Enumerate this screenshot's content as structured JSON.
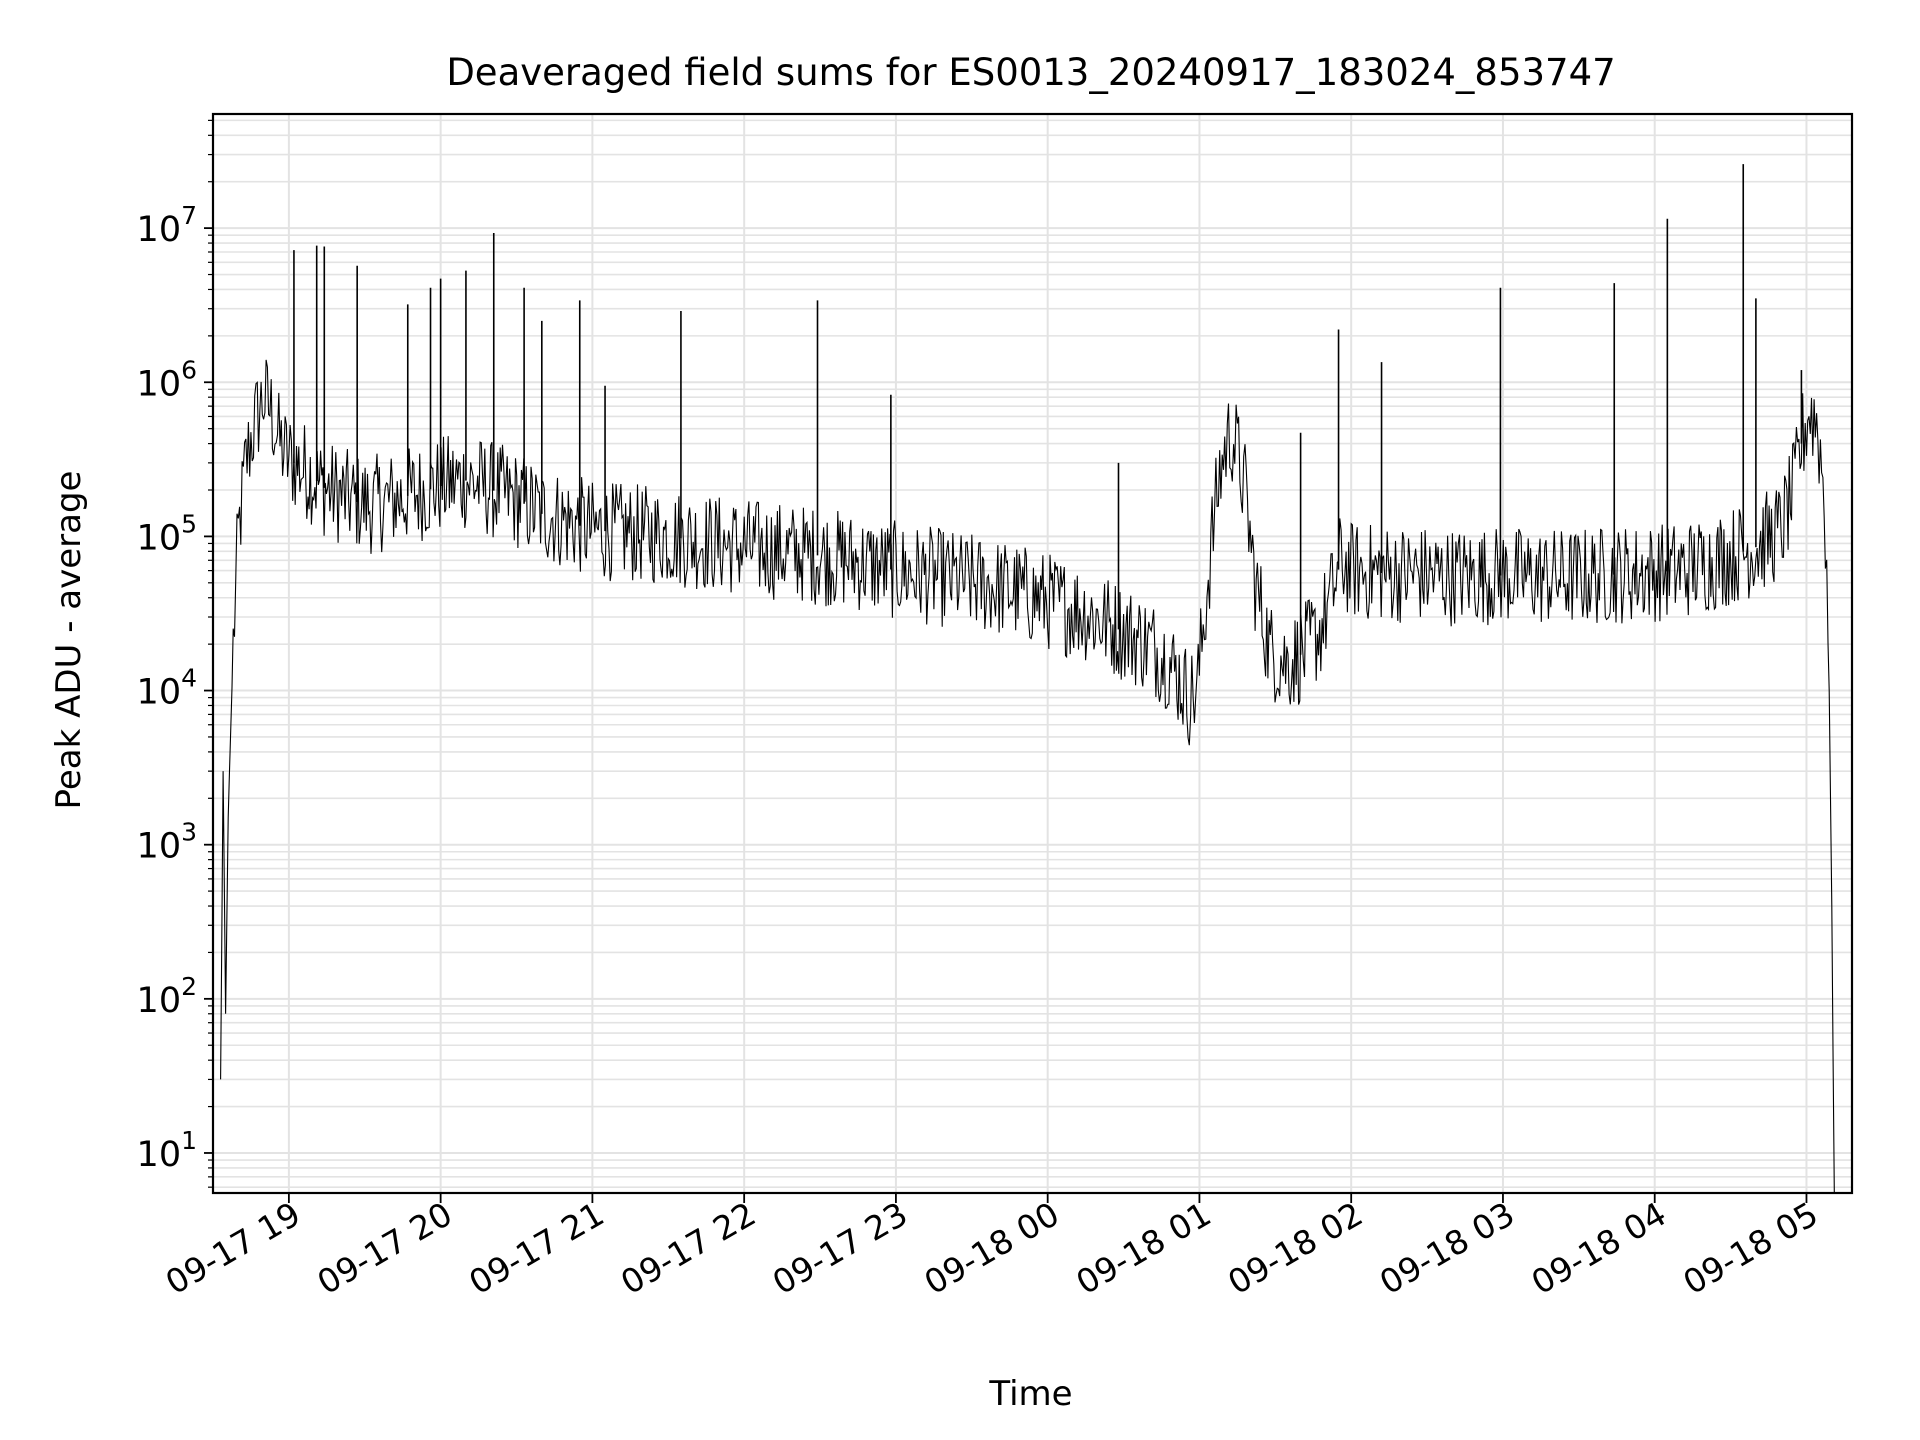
{
  "chart_data": {
    "type": "line",
    "title": "Deaveraged field sums for ES0013_20240917_183024_853747",
    "xlabel": "Time",
    "ylabel": "Peak ADU - average",
    "yscale": "log",
    "ylim": [
      5.5,
      55000000
    ],
    "xlim": [
      "2024-09-17 18:30",
      "2024-09-18 05:18"
    ],
    "grid": true,
    "line_color": "#000000",
    "grid_color": "#e3e3e3",
    "x_ticks": [
      {
        "t": "2024-09-17 19:00",
        "label": "09-17 19"
      },
      {
        "t": "2024-09-17 20:00",
        "label": "09-17 20"
      },
      {
        "t": "2024-09-17 21:00",
        "label": "09-17 21"
      },
      {
        "t": "2024-09-17 22:00",
        "label": "09-17 22"
      },
      {
        "t": "2024-09-17 23:00",
        "label": "09-17 23"
      },
      {
        "t": "2024-09-18 00:00",
        "label": "09-18 00"
      },
      {
        "t": "2024-09-18 01:00",
        "label": "09-18 01"
      },
      {
        "t": "2024-09-18 02:00",
        "label": "09-18 02"
      },
      {
        "t": "2024-09-18 03:00",
        "label": "09-18 03"
      },
      {
        "t": "2024-09-18 04:00",
        "label": "09-18 04"
      },
      {
        "t": "2024-09-18 05:00",
        "label": "09-18 05"
      }
    ],
    "y_ticks": [
      {
        "v": 10,
        "base": "10",
        "exp": "1"
      },
      {
        "v": 100,
        "base": "10",
        "exp": "2"
      },
      {
        "v": 1000,
        "base": "10",
        "exp": "3"
      },
      {
        "v": 10000,
        "base": "10",
        "exp": "4"
      },
      {
        "v": 100000,
        "base": "10",
        "exp": "5"
      },
      {
        "v": 1000000,
        "base": "10",
        "exp": "6"
      },
      {
        "v": 10000000,
        "base": "10",
        "exp": "7"
      }
    ],
    "series": [
      {
        "x": [
          "2024-09-17 18:33",
          "2024-09-17 18:34",
          "2024-09-17 18:35",
          "2024-09-17 18:36",
          "2024-09-17 18:38",
          "2024-09-17 18:40",
          "2024-09-17 18:43",
          "2024-09-17 18:46",
          "2024-09-17 18:50",
          "2024-09-17 18:53",
          "2024-09-17 18:56",
          "2024-09-17 18:59",
          "2024-09-17 19:03",
          "2024-09-17 19:08",
          "2024-09-17 19:13",
          "2024-09-17 19:19",
          "2024-09-17 19:25",
          "2024-09-17 19:32",
          "2024-09-17 19:40",
          "2024-09-17 19:48",
          "2024-09-17 19:55",
          "2024-09-17 20:03",
          "2024-09-17 20:10",
          "2024-09-17 20:17",
          "2024-09-17 20:24",
          "2024-09-17 20:31",
          "2024-09-17 20:40",
          "2024-09-17 20:50",
          "2024-09-17 21:00",
          "2024-09-17 21:15",
          "2024-09-17 21:30",
          "2024-09-17 21:45",
          "2024-09-17 22:00",
          "2024-09-17 22:15",
          "2024-09-17 22:30",
          "2024-09-17 22:45",
          "2024-09-17 23:00",
          "2024-09-17 23:15",
          "2024-09-17 23:30",
          "2024-09-17 23:45",
          "2024-09-18 00:00",
          "2024-09-18 00:15",
          "2024-09-18 00:30",
          "2024-09-18 00:40",
          "2024-09-18 00:47",
          "2024-09-18 00:52",
          "2024-09-18 00:56",
          "2024-09-18 00:59",
          "2024-09-18 01:02",
          "2024-09-18 01:05",
          "2024-09-18 01:08",
          "2024-09-18 01:11",
          "2024-09-18 01:13",
          "2024-09-18 01:15",
          "2024-09-18 01:18",
          "2024-09-18 01:22",
          "2024-09-18 01:28",
          "2024-09-18 01:35",
          "2024-09-18 01:42",
          "2024-09-18 01:48",
          "2024-09-18 01:52",
          "2024-09-18 01:56",
          "2024-09-18 02:00",
          "2024-09-18 02:10",
          "2024-09-18 02:25",
          "2024-09-18 02:40",
          "2024-09-18 02:55",
          "2024-09-18 03:10",
          "2024-09-18 03:25",
          "2024-09-18 03:40",
          "2024-09-18 03:55",
          "2024-09-18 04:10",
          "2024-09-18 04:25",
          "2024-09-18 04:40",
          "2024-09-18 04:50",
          "2024-09-18 04:55",
          "2024-09-18 04:58",
          "2024-09-18 05:01",
          "2024-09-18 05:04",
          "2024-09-18 05:06",
          "2024-09-18 05:08",
          "2024-09-18 05:09",
          "2024-09-18 05:10",
          "2024-09-18 05:11"
        ],
        "y": [
          30,
          3000,
          80,
          1500,
          20000,
          100000,
          300000,
          500000,
          800000,
          650000,
          420000,
          330000,
          290000,
          260000,
          210000,
          190000,
          170000,
          160000,
          170000,
          185000,
          200000,
          220000,
          230000,
          210000,
          190000,
          170000,
          140000,
          125000,
          110000,
          105000,
          100000,
          92000,
          85000,
          80000,
          75000,
          68000,
          60000,
          55000,
          50000,
          45000,
          38000,
          32000,
          24000,
          20000,
          16000,
          12000,
          9000,
          10000,
          30000,
          100000,
          250000,
          420000,
          450000,
          350000,
          200000,
          50000,
          18000,
          15000,
          18000,
          25000,
          40000,
          70000,
          60000,
          58000,
          57000,
          55000,
          56000,
          55000,
          54000,
          56000,
          58000,
          60000,
          70000,
          85000,
          110000,
          200000,
          400000,
          650000,
          550000,
          300000,
          80000,
          10000,
          400,
          5.5
        ]
      }
    ],
    "spikes": [
      {
        "x": "2024-09-17 19:02",
        "y": 7200000
      },
      {
        "x": "2024-09-17 19:11",
        "y": 7700000
      },
      {
        "x": "2024-09-17 19:14",
        "y": 7600000
      },
      {
        "x": "2024-09-17 19:27",
        "y": 5700000
      },
      {
        "x": "2024-09-17 19:47",
        "y": 3200000
      },
      {
        "x": "2024-09-17 19:56",
        "y": 4100000
      },
      {
        "x": "2024-09-17 20:00",
        "y": 4700000
      },
      {
        "x": "2024-09-17 20:10",
        "y": 5300000
      },
      {
        "x": "2024-09-17 20:21",
        "y": 9300000
      },
      {
        "x": "2024-09-17 20:33",
        "y": 4100000
      },
      {
        "x": "2024-09-17 20:40",
        "y": 2500000
      },
      {
        "x": "2024-09-17 20:55",
        "y": 3400000
      },
      {
        "x": "2024-09-17 21:05",
        "y": 950000
      },
      {
        "x": "2024-09-17 21:35",
        "y": 2900000
      },
      {
        "x": "2024-09-17 22:29",
        "y": 3400000
      },
      {
        "x": "2024-09-17 22:58",
        "y": 830000
      },
      {
        "x": "2024-09-18 00:28",
        "y": 300000
      },
      {
        "x": "2024-09-18 01:40",
        "y": 470000
      },
      {
        "x": "2024-09-18 01:55",
        "y": 2200000
      },
      {
        "x": "2024-09-18 02:12",
        "y": 1350000
      },
      {
        "x": "2024-09-18 02:59",
        "y": 4100000
      },
      {
        "x": "2024-09-18 03:44",
        "y": 4400000
      },
      {
        "x": "2024-09-18 04:05",
        "y": 11500000
      },
      {
        "x": "2024-09-18 04:35",
        "y": 26000000
      },
      {
        "x": "2024-09-18 04:40",
        "y": 3500000
      },
      {
        "x": "2024-09-18 04:58",
        "y": 1200000
      }
    ]
  }
}
